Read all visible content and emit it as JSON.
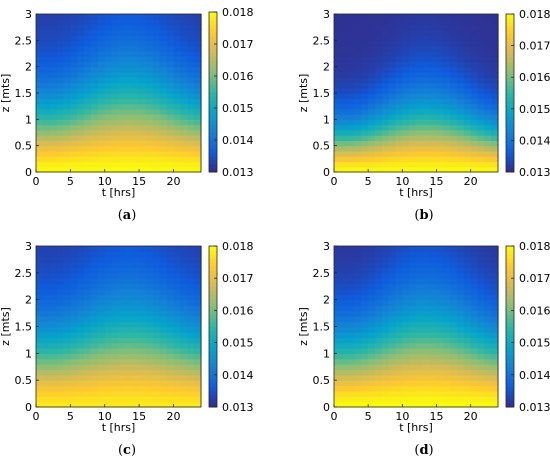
{
  "figure": {
    "panels": [
      {
        "caption_open": "(",
        "caption_letter": "a",
        "caption_close": ")"
      },
      {
        "caption_open": "(",
        "caption_letter": "b",
        "caption_close": ")"
      },
      {
        "caption_open": "(",
        "caption_letter": "c",
        "caption_close": ")"
      },
      {
        "caption_open": "(",
        "caption_letter": "d",
        "caption_close": ")"
      }
    ],
    "colors": {
      "colormap": "parula",
      "parula_stops": [
        "#352a87",
        "#0f5cdd",
        "#1481d6",
        "#06a4ca",
        "#2eb7a4",
        "#87bf77",
        "#d1bb59",
        "#fec832",
        "#f9fb0e"
      ]
    }
  },
  "chart_data": [
    {
      "type": "heatmap",
      "title": "",
      "xlabel": "t [hrs]",
      "ylabel": "z [mts]",
      "xlim": [
        0,
        24
      ],
      "ylim": [
        0,
        3
      ],
      "xticks": [
        "0",
        "5",
        "10",
        "15",
        "20"
      ],
      "yticks": [
        "0",
        "0.5",
        "1",
        "1.5",
        "2",
        "2.5",
        "3"
      ],
      "colorbar": {
        "range": [
          0.013,
          0.018
        ],
        "ticks": [
          "0.013",
          "0.014",
          "0.015",
          "0.016",
          "0.017",
          "0.018"
        ]
      },
      "field": {
        "bottom_value": 0.018,
        "top_value": 0.0132,
        "decay_depth": 0.9,
        "min_decay_depth": 0.9,
        "diurnal_amplitude": 0.35,
        "peak_hour": 13.5
      }
    },
    {
      "type": "heatmap",
      "title": "",
      "xlabel": "t [hrs]",
      "ylabel": "z [mts]",
      "xlim": [
        0,
        24
      ],
      "ylim": [
        0,
        3
      ],
      "xticks": [
        "0",
        "5",
        "10",
        "15",
        "20"
      ],
      "yticks": [
        "0",
        "0.5",
        "1",
        "1.5",
        "2",
        "2.5",
        "3"
      ],
      "colorbar": {
        "range": [
          0.013,
          0.018
        ],
        "ticks": [
          "0.013",
          "0.014",
          "0.015",
          "0.016",
          "0.017",
          "0.018"
        ]
      },
      "field": {
        "bottom_value": 0.018,
        "top_value": 0.0131,
        "decay_depth": 0.6,
        "min_decay_depth": 0.6,
        "diurnal_amplitude": 0.3,
        "peak_hour": 13.5
      }
    },
    {
      "type": "heatmap",
      "title": "",
      "xlabel": "t [hrs]",
      "ylabel": "z [mts]",
      "xlim": [
        0,
        24
      ],
      "ylim": [
        0,
        3
      ],
      "xticks": [
        "0",
        "5",
        "10",
        "15",
        "20"
      ],
      "yticks": [
        "0",
        "0.5",
        "1",
        "1.5",
        "2",
        "2.5",
        "3"
      ],
      "colorbar": {
        "range": [
          0.013,
          0.018
        ],
        "ticks": [
          "0.013",
          "0.014",
          "0.015",
          "0.016",
          "0.017",
          "0.018"
        ]
      },
      "field": {
        "bottom_value": 0.0178,
        "top_value": 0.0132,
        "decay_depth": 0.95,
        "min_decay_depth": 0.95,
        "diurnal_amplitude": 0.3,
        "peak_hour": 13.5
      }
    },
    {
      "type": "heatmap",
      "title": "",
      "xlabel": "t [hrs]",
      "ylabel": "z [mts]",
      "xlim": [
        0,
        24
      ],
      "ylim": [
        0,
        3
      ],
      "xticks": [
        "0",
        "5",
        "10",
        "15",
        "20"
      ],
      "yticks": [
        "0",
        "0.5",
        "1",
        "1.5",
        "2",
        "2.5",
        "3"
      ],
      "colorbar": {
        "range": [
          0.013,
          0.018
        ],
        "ticks": [
          "0.013",
          "0.014",
          "0.015",
          "0.016",
          "0.017",
          "0.018"
        ]
      },
      "field": {
        "bottom_value": 0.018,
        "top_value": 0.0131,
        "decay_depth": 0.9,
        "min_decay_depth": 0.9,
        "diurnal_amplitude": 0.35,
        "peak_hour": 13.5
      }
    }
  ]
}
